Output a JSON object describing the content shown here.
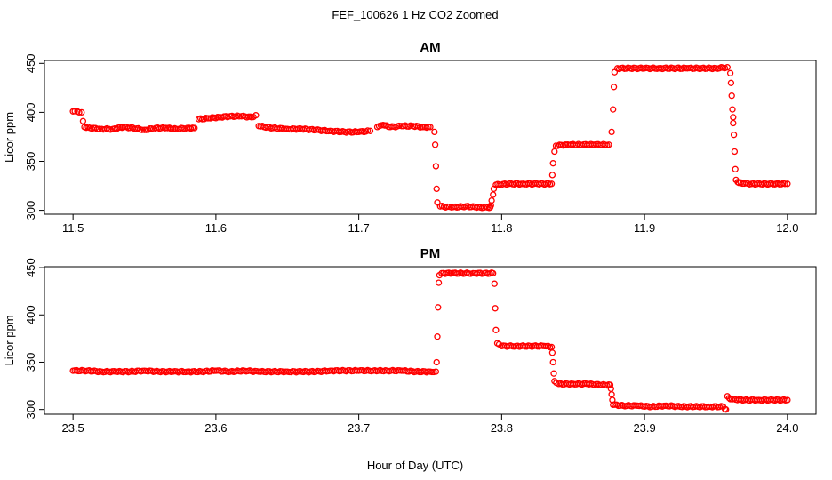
{
  "chart_data": [
    {
      "type": "scatter",
      "title": "FEF_100626 1 Hz CO2 Zoomed",
      "panel_title": "AM",
      "xlabel": "Hour of Day (UTC)",
      "ylabel": "Licor ppm",
      "xlim": [
        11.48,
        12.02
      ],
      "ylim": [
        296,
        453
      ],
      "xticks": [
        "11.5",
        "11.6",
        "11.7",
        "11.8",
        "11.9",
        "12.0"
      ],
      "yticks": [
        "300",
        "350",
        "400",
        "450"
      ],
      "marker": "open circle",
      "color": "#ff0000",
      "points": [
        [
          11.5,
          401
        ],
        [
          11.503,
          401
        ],
        [
          11.506,
          400
        ],
        [
          11.507,
          391
        ],
        [
          11.508,
          385
        ],
        [
          11.512,
          384
        ],
        [
          11.52,
          383
        ],
        [
          11.528,
          383
        ],
        [
          11.535,
          385
        ],
        [
          11.542,
          384
        ],
        [
          11.55,
          382
        ],
        [
          11.558,
          384
        ],
        [
          11.565,
          384
        ],
        [
          11.572,
          383
        ],
        [
          11.58,
          384
        ],
        [
          11.585,
          384
        ],
        [
          11.588,
          393
        ],
        [
          11.595,
          394
        ],
        [
          11.602,
          395
        ],
        [
          11.61,
          396
        ],
        [
          11.618,
          396
        ],
        [
          11.625,
          395
        ],
        [
          11.628,
          397
        ],
        [
          11.63,
          386
        ],
        [
          11.64,
          384
        ],
        [
          11.65,
          383
        ],
        [
          11.66,
          383
        ],
        [
          11.67,
          382
        ],
        [
          11.68,
          381
        ],
        [
          11.69,
          380
        ],
        [
          11.7,
          380
        ],
        [
          11.708,
          381
        ],
        [
          11.713,
          385
        ],
        [
          11.717,
          387
        ],
        [
          11.722,
          385
        ],
        [
          11.73,
          386
        ],
        [
          11.738,
          386
        ],
        [
          11.745,
          385
        ],
        [
          11.75,
          385
        ],
        [
          11.753,
          380
        ],
        [
          11.7535,
          367
        ],
        [
          11.754,
          345
        ],
        [
          11.7545,
          322
        ],
        [
          11.755,
          308
        ],
        [
          11.757,
          304
        ],
        [
          11.765,
          303
        ],
        [
          11.775,
          304
        ],
        [
          11.785,
          303
        ],
        [
          11.792,
          303
        ],
        [
          11.7925,
          305
        ],
        [
          11.793,
          310
        ],
        [
          11.794,
          316
        ],
        [
          11.7945,
          322
        ],
        [
          11.796,
          326
        ],
        [
          11.805,
          327
        ],
        [
          11.815,
          327
        ],
        [
          11.825,
          327
        ],
        [
          11.835,
          327
        ],
        [
          11.8355,
          336
        ],
        [
          11.836,
          348
        ],
        [
          11.837,
          360
        ],
        [
          11.838,
          366
        ],
        [
          11.845,
          367
        ],
        [
          11.855,
          367
        ],
        [
          11.865,
          367
        ],
        [
          11.875,
          367
        ],
        [
          11.877,
          380
        ],
        [
          11.878,
          403
        ],
        [
          11.8785,
          426
        ],
        [
          11.879,
          441
        ],
        [
          11.881,
          445
        ],
        [
          11.89,
          445
        ],
        [
          11.9,
          445
        ],
        [
          11.91,
          445
        ],
        [
          11.92,
          445
        ],
        [
          11.93,
          445
        ],
        [
          11.94,
          445
        ],
        [
          11.95,
          445
        ],
        [
          11.958,
          446
        ],
        [
          11.96,
          440
        ],
        [
          11.9605,
          430
        ],
        [
          11.961,
          417
        ],
        [
          11.9615,
          403
        ],
        [
          11.962,
          395
        ],
        [
          11.962,
          389
        ],
        [
          11.9625,
          377
        ],
        [
          11.963,
          360
        ],
        [
          11.9635,
          342
        ],
        [
          11.964,
          331
        ],
        [
          11.966,
          328
        ],
        [
          11.975,
          327
        ],
        [
          11.985,
          327
        ],
        [
          11.992,
          327
        ],
        [
          12.0,
          327
        ]
      ]
    },
    {
      "type": "scatter",
      "panel_title": "PM",
      "xlabel": "Hour of Day (UTC)",
      "ylabel": "Licor ppm",
      "xlim": [
        23.48,
        24.02
      ],
      "ylim": [
        295,
        451
      ],
      "xticks": [
        "23.5",
        "23.6",
        "23.7",
        "23.8",
        "23.9",
        "24.0"
      ],
      "yticks": [
        "300",
        "350",
        "400",
        "450"
      ],
      "marker": "open circle",
      "color": "#ff0000",
      "points": [
        [
          23.5,
          341
        ],
        [
          23.51,
          341
        ],
        [
          23.52,
          340
        ],
        [
          23.53,
          340
        ],
        [
          23.54,
          340
        ],
        [
          23.55,
          341
        ],
        [
          23.56,
          340
        ],
        [
          23.57,
          340
        ],
        [
          23.58,
          340
        ],
        [
          23.59,
          340
        ],
        [
          23.6,
          341
        ],
        [
          23.61,
          340
        ],
        [
          23.62,
          341
        ],
        [
          23.63,
          340
        ],
        [
          23.64,
          340
        ],
        [
          23.65,
          340
        ],
        [
          23.66,
          340
        ],
        [
          23.67,
          340
        ],
        [
          23.68,
          341
        ],
        [
          23.69,
          341
        ],
        [
          23.7,
          341
        ],
        [
          23.71,
          341
        ],
        [
          23.72,
          341
        ],
        [
          23.73,
          341
        ],
        [
          23.74,
          340
        ],
        [
          23.75,
          340
        ],
        [
          23.754,
          340
        ],
        [
          23.7545,
          350
        ],
        [
          23.755,
          377
        ],
        [
          23.7555,
          408
        ],
        [
          23.756,
          434
        ],
        [
          23.7565,
          442
        ],
        [
          23.758,
          444
        ],
        [
          23.765,
          444
        ],
        [
          23.772,
          444
        ],
        [
          23.78,
          444
        ],
        [
          23.788,
          444
        ],
        [
          23.794,
          444
        ],
        [
          23.795,
          433
        ],
        [
          23.7955,
          407
        ],
        [
          23.796,
          384
        ],
        [
          23.797,
          370
        ],
        [
          23.8,
          367
        ],
        [
          23.81,
          367
        ],
        [
          23.82,
          367
        ],
        [
          23.83,
          367
        ],
        [
          23.835,
          366
        ],
        [
          23.8355,
          360
        ],
        [
          23.836,
          350
        ],
        [
          23.8365,
          338
        ],
        [
          23.837,
          330
        ],
        [
          23.84,
          327
        ],
        [
          23.85,
          327
        ],
        [
          23.86,
          327
        ],
        [
          23.87,
          326
        ],
        [
          23.876,
          326
        ],
        [
          23.8765,
          322
        ],
        [
          23.877,
          316
        ],
        [
          23.8775,
          310
        ],
        [
          23.878,
          305
        ],
        [
          23.885,
          304
        ],
        [
          23.895,
          304
        ],
        [
          23.905,
          303
        ],
        [
          23.915,
          304
        ],
        [
          23.925,
          303
        ],
        [
          23.935,
          303
        ],
        [
          23.945,
          303
        ],
        [
          23.955,
          303
        ],
        [
          23.957,
          300
        ],
        [
          23.958,
          314
        ],
        [
          23.96,
          311
        ],
        [
          23.97,
          310
        ],
        [
          23.98,
          310
        ],
        [
          23.99,
          310
        ],
        [
          24.0,
          310
        ]
      ]
    }
  ]
}
